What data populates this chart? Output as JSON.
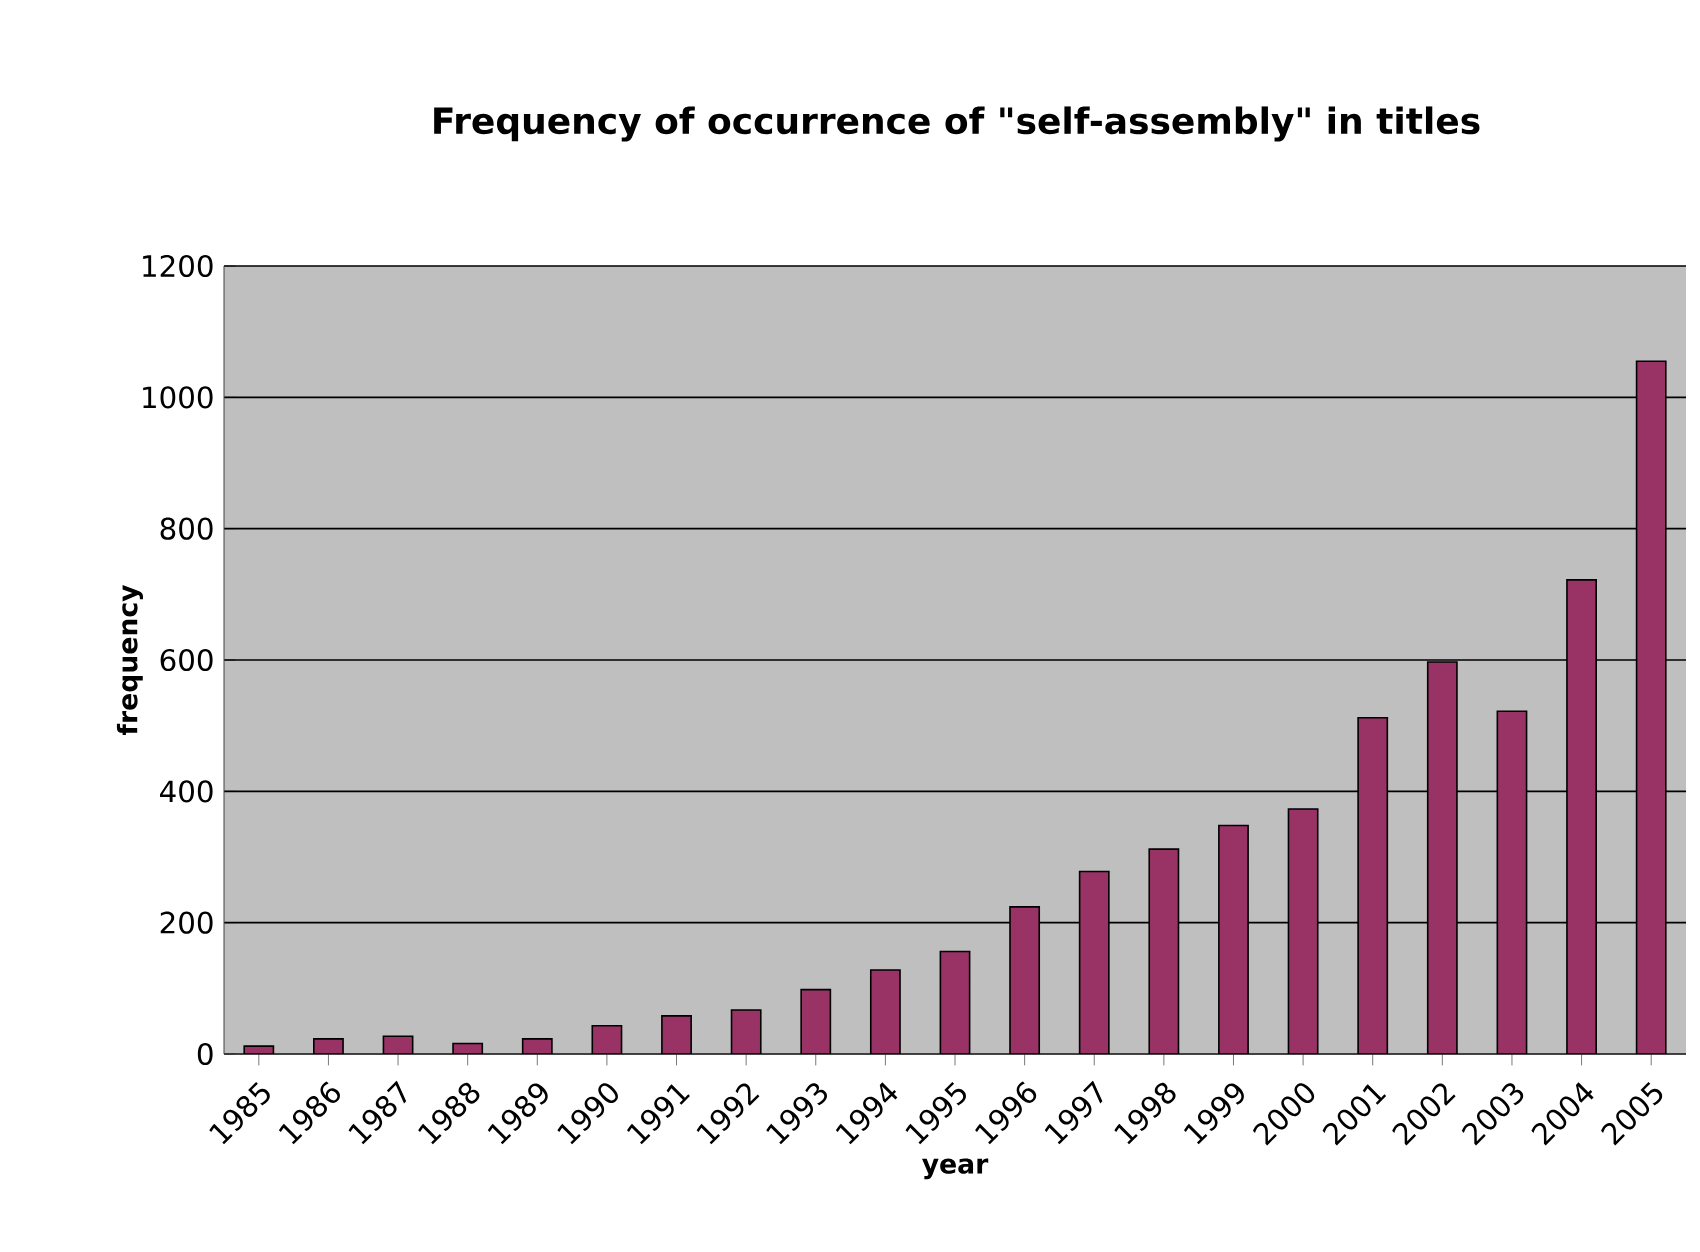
{
  "chart_data": {
    "type": "bar",
    "title": "Frequency of occurrence of \"self-assembly\" in titles",
    "xlabel": "year",
    "ylabel": "frequency",
    "categories": [
      "1985",
      "1986",
      "1987",
      "1988",
      "1989",
      "1990",
      "1991",
      "1992",
      "1993",
      "1994",
      "1995",
      "1996",
      "1997",
      "1998",
      "1999",
      "2000",
      "2001",
      "2002",
      "2003",
      "2004",
      "2005"
    ],
    "values": [
      12,
      23,
      27,
      16,
      23,
      43,
      58,
      67,
      98,
      128,
      156,
      224,
      278,
      312,
      348,
      373,
      512,
      597,
      522,
      722,
      1055
    ],
    "color": "#993366",
    "ylim": [
      0,
      1200
    ],
    "yticks": [
      0,
      200,
      400,
      600,
      800,
      1000,
      1200
    ],
    "grid": "y"
  }
}
